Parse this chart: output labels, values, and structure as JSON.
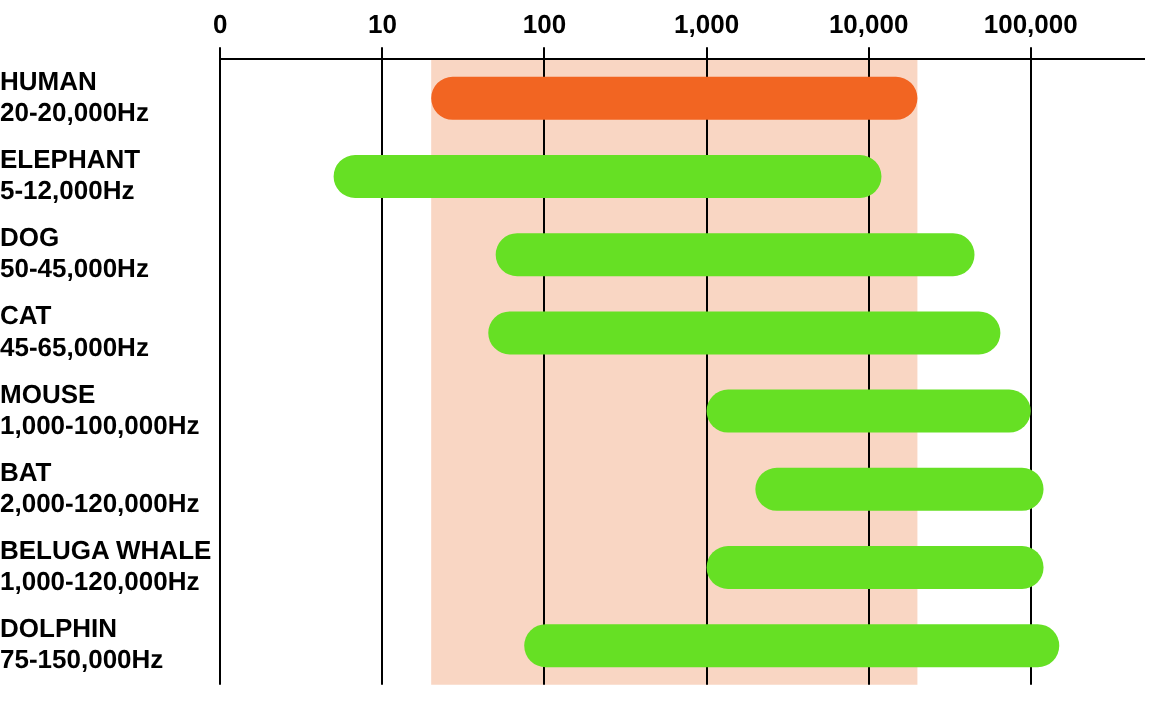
{
  "chart_data": {
    "type": "bar",
    "orientation": "horizontal",
    "log": "x",
    "categories": [
      "HUMAN\n20-20,000Hz",
      "ELEPHANT\n5-12,000Hz",
      "DOG\n50-45,000Hz",
      "CAT\n45-65,000Hz",
      "MOUSE\n1,000-100,000Hz",
      "BAT\n2,000-120,000Hz",
      "BELUGA WHALE\n1,000-120,000Hz",
      "DOLPHIN\n75-150,000Hz"
    ],
    "base": [
      20,
      5,
      50,
      45,
      1000,
      2000,
      1000,
      75
    ],
    "values": [
      19980,
      11995,
      44950,
      64955,
      99000,
      118000,
      119000,
      149925
    ],
    "colors": [
      "#f26522",
      "#66e024",
      "#66e024",
      "#66e024",
      "#66e024",
      "#66e024",
      "#66e024",
      "#66e024"
    ],
    "xlim": [
      0,
      500000
    ],
    "xticks": [
      0,
      10,
      100,
      {
        "value": 1000,
        "label": "1,000"
      },
      {
        "value": 10000,
        "label": "10,000"
      },
      {
        "value": 100000,
        "label": "100,000"
      }
    ],
    "bands": [
      {
        "axis": "x",
        "from": 20,
        "to": 20000,
        "color": "#f9d6c3"
      }
    ],
    "grid": "x",
    "legend": false
  }
}
